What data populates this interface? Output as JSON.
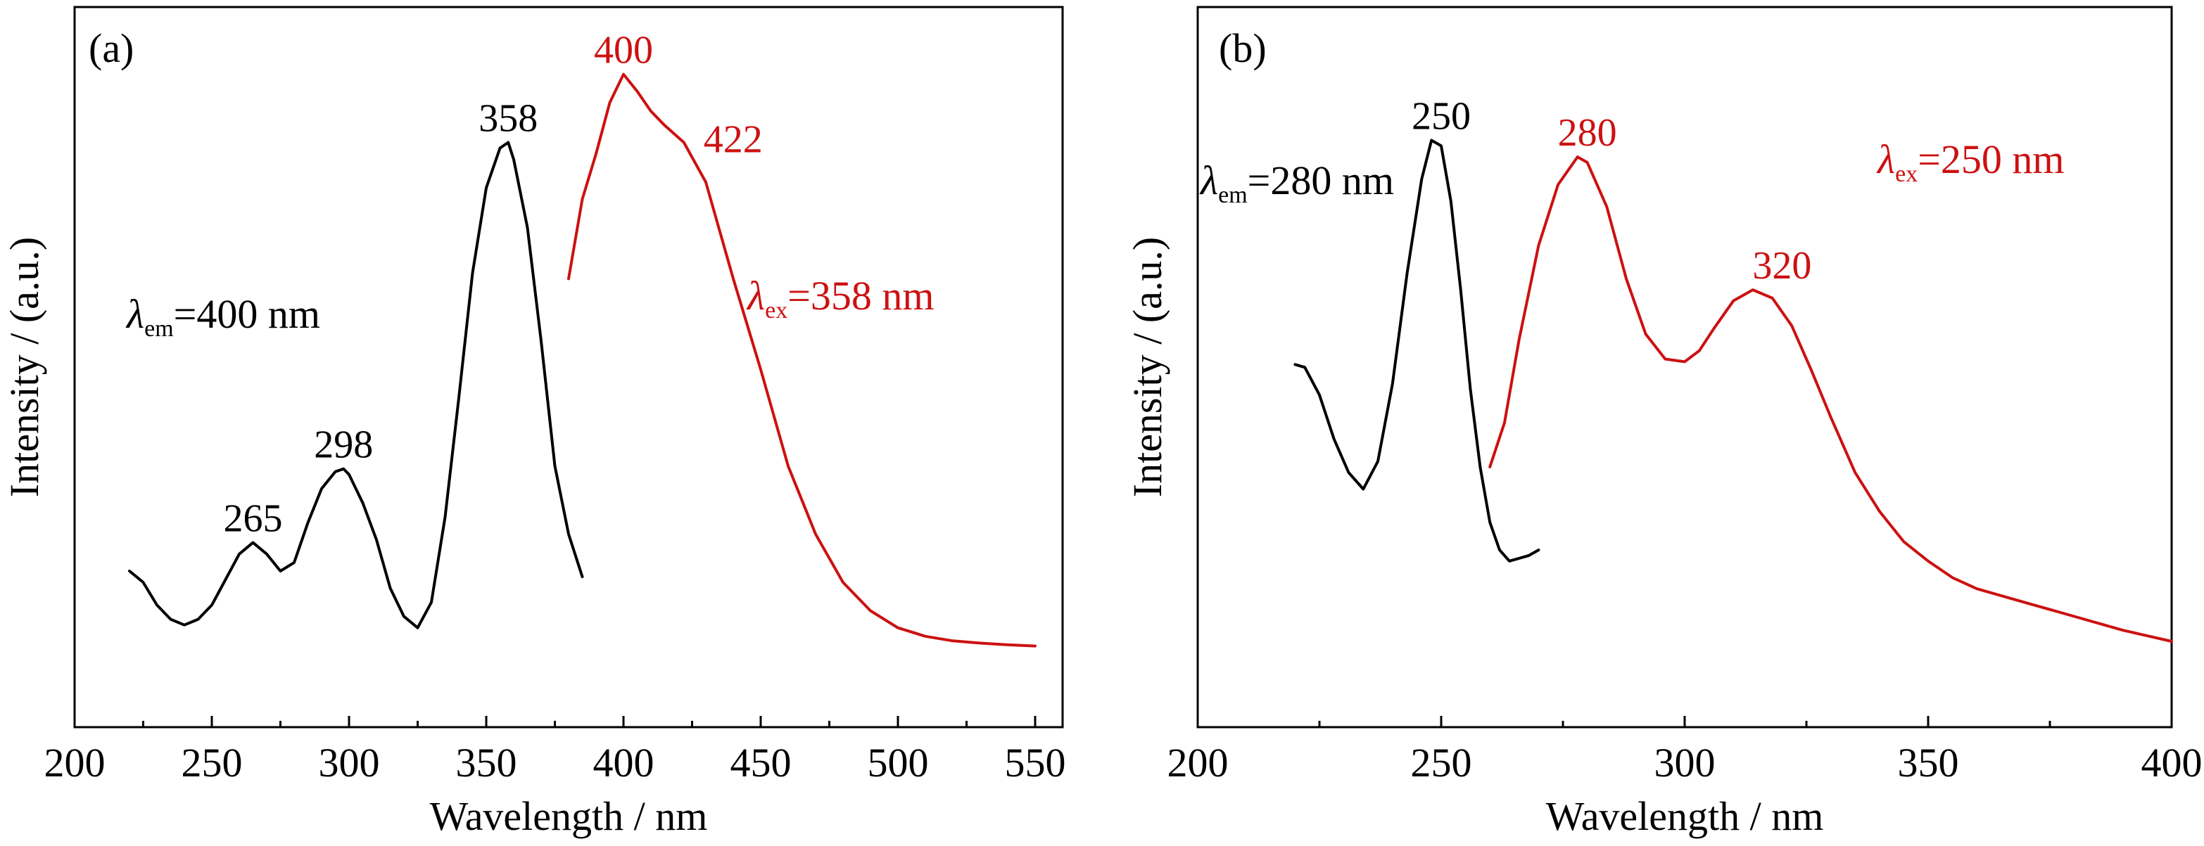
{
  "chart_data": [
    {
      "type": "line",
      "panel_label": "(a)",
      "xlabel": "Wavelength / nm",
      "ylabel": "Intensity / (a.u.)",
      "xlim": [
        200,
        560
      ],
      "ylim": [
        0,
        1.1
      ],
      "x_ticks": [
        "200",
        "250",
        "300",
        "350",
        "400",
        "450",
        "500",
        "550"
      ],
      "y_ticks_labeled": false,
      "grid": false,
      "legend": "none",
      "series": [
        {
          "color": "#000000",
          "x": [
            220,
            225,
            230,
            235,
            240,
            245,
            250,
            255,
            260,
            265,
            270,
            275,
            280,
            285,
            290,
            295,
            298,
            300,
            305,
            310,
            315,
            320,
            325,
            330,
            335,
            340,
            345,
            350,
            355,
            358,
            360,
            365,
            370,
            375,
            380,
            385
          ],
          "y": [
            0.275,
            0.255,
            0.215,
            0.19,
            0.18,
            0.19,
            0.215,
            0.26,
            0.305,
            0.325,
            0.305,
            0.275,
            0.29,
            0.36,
            0.42,
            0.45,
            0.455,
            0.445,
            0.395,
            0.33,
            0.245,
            0.195,
            0.175,
            0.22,
            0.37,
            0.58,
            0.8,
            0.95,
            1.02,
            1.03,
            1.0,
            0.88,
            0.68,
            0.46,
            0.34,
            0.265
          ]
        },
        {
          "color": "#cc1111",
          "x": [
            380,
            385,
            390,
            395,
            400,
            405,
            410,
            415,
            422,
            430,
            440,
            450,
            460,
            470,
            480,
            490,
            500,
            510,
            520,
            530,
            540,
            550
          ],
          "y": [
            0.79,
            0.93,
            1.01,
            1.1,
            1.15,
            1.12,
            1.085,
            1.06,
            1.03,
            0.96,
            0.79,
            0.63,
            0.46,
            0.34,
            0.255,
            0.205,
            0.175,
            0.16,
            0.152,
            0.148,
            0.145,
            0.143
          ]
        }
      ],
      "peak_labels": [
        {
          "text": "265",
          "x": 265,
          "y": 0.325,
          "color": "#000000"
        },
        {
          "text": "298",
          "x": 298,
          "y": 0.455,
          "color": "#000000"
        },
        {
          "text": "358",
          "x": 358,
          "y": 1.03,
          "color": "#000000"
        },
        {
          "text": "400",
          "x": 400,
          "y": 1.15,
          "color": "#cc1111"
        },
        {
          "text": "422",
          "x": 422,
          "y": 1.03,
          "color": "#cc1111"
        }
      ],
      "annotations": [
        {
          "symbol": "λ",
          "subscript": "em",
          "text": "=400 nm",
          "color": "#000000"
        },
        {
          "symbol": "λ",
          "subscript": "ex",
          "text": "=358 nm",
          "color": "#cc1111"
        }
      ]
    },
    {
      "type": "line",
      "panel_label": "(b)",
      "xlabel": "Wavelength / nm",
      "ylabel": "Intensity / (a.u.)",
      "xlim": [
        200,
        400
      ],
      "ylim": [
        0,
        1.1
      ],
      "x_ticks": [
        "200",
        "250",
        "300",
        "350",
        "400"
      ],
      "y_ticks_labeled": false,
      "grid": false,
      "legend": "none",
      "series": [
        {
          "color": "#000000",
          "x": [
            220,
            222,
            225,
            228,
            231,
            234,
            237,
            240,
            243,
            246,
            248,
            250,
            252,
            254,
            256,
            258,
            260,
            262,
            264,
            266,
            268,
            270
          ],
          "y": [
            0.655,
            0.65,
            0.6,
            0.52,
            0.46,
            0.43,
            0.48,
            0.62,
            0.82,
            0.99,
            1.06,
            1.05,
            0.95,
            0.79,
            0.61,
            0.47,
            0.37,
            0.32,
            0.3,
            0.305,
            0.31,
            0.32
          ]
        },
        {
          "color": "#cc1111",
          "x": [
            260,
            263,
            266,
            270,
            274,
            278,
            280,
            284,
            288,
            292,
            296,
            300,
            303,
            306,
            310,
            314,
            318,
            322,
            326,
            330,
            335,
            340,
            345,
            350,
            355,
            360,
            370,
            380,
            390,
            400
          ],
          "y": [
            0.47,
            0.55,
            0.7,
            0.87,
            0.98,
            1.03,
            1.02,
            0.94,
            0.81,
            0.71,
            0.665,
            0.66,
            0.68,
            0.72,
            0.77,
            0.79,
            0.775,
            0.725,
            0.645,
            0.56,
            0.46,
            0.39,
            0.335,
            0.3,
            0.27,
            0.25,
            0.225,
            0.2,
            0.175,
            0.155
          ]
        }
      ],
      "peak_labels": [
        {
          "text": "250",
          "x": 250,
          "y": 1.06,
          "color": "#000000"
        },
        {
          "text": "280",
          "x": 280,
          "y": 1.03,
          "color": "#cc1111"
        },
        {
          "text": "320",
          "x": 320,
          "y": 0.79,
          "color": "#cc1111"
        }
      ],
      "annotations": [
        {
          "symbol": "λ",
          "subscript": "em",
          "text": "=280 nm",
          "color": "#000000"
        },
        {
          "symbol": "λ",
          "subscript": "ex",
          "text": "=250 nm",
          "color": "#cc1111"
        }
      ]
    }
  ]
}
